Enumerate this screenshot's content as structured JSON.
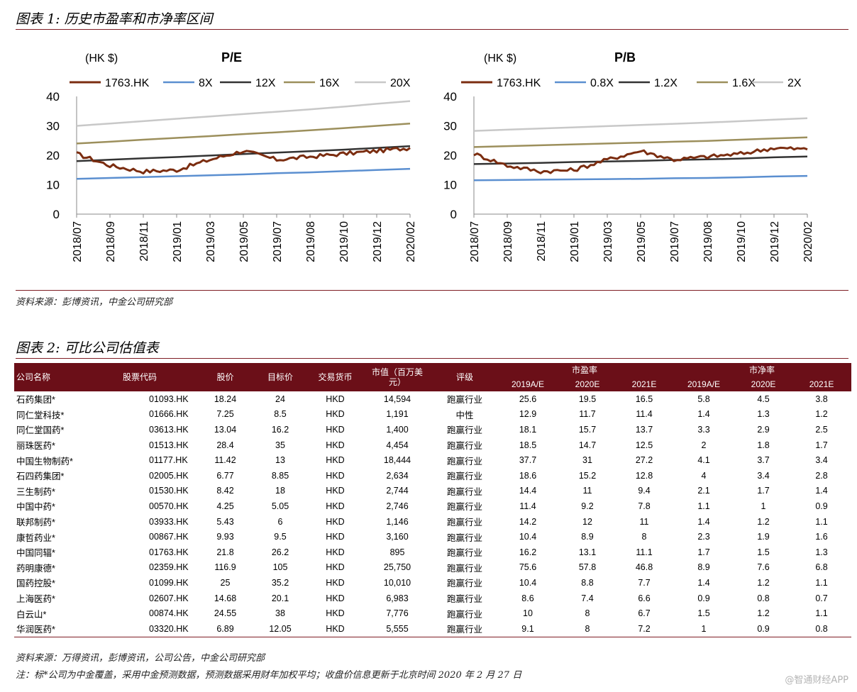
{
  "figure1": {
    "title": "图表 1: 历史市盈率和市净率区间",
    "source": "资料来源：彭博资讯，中金公司研究部"
  },
  "figure2": {
    "title": "图表 2: 可比公司估值表",
    "source": "资料来源：万得资讯，彭博资讯，公司公告，中金公司研究部",
    "note": "注：标*公司为中金覆盖，采用中金预测数据，预测数据采用财年加权平均；收盘价信息更新于北京时间 2020 年 2 月 27 日"
  },
  "watermark": "@智通财经APP",
  "colors": {
    "brand": "#6b0f18",
    "price_line": "#7b2d10",
    "band_low": "#5b8fd0",
    "band_mid": "#333333",
    "band_high": "#9c8f5c",
    "band_top": "#c8c8c8"
  },
  "chart_data": [
    {
      "type": "line",
      "title": "P/E",
      "unit_label": "(HK $)",
      "x": [
        "2018/07",
        "2018/09",
        "2018/11",
        "2019/01",
        "2019/03",
        "2019/05",
        "2019/07",
        "2019/08",
        "2019/10",
        "2019/12",
        "2020/02"
      ],
      "ylim": [
        0,
        40
      ],
      "yticks": [
        "0",
        "10",
        "20",
        "30",
        "40"
      ],
      "series": [
        {
          "name": "1763.HK",
          "values": [
            20.5,
            16.5,
            14.5,
            15.0,
            18.5,
            21.5,
            18.5,
            19.5,
            20.5,
            21.5,
            22.5
          ]
        },
        {
          "name": "8X",
          "values": [
            12.0,
            12.3,
            12.6,
            12.9,
            13.2,
            13.5,
            13.9,
            14.2,
            14.6,
            15.0,
            15.4
          ]
        },
        {
          "name": "12X",
          "values": [
            18.0,
            18.5,
            19.0,
            19.4,
            19.9,
            20.4,
            20.9,
            21.4,
            21.9,
            22.5,
            23.1
          ]
        },
        {
          "name": "16X",
          "values": [
            24.0,
            24.6,
            25.3,
            25.9,
            26.5,
            27.2,
            27.8,
            28.5,
            29.2,
            30.0,
            30.8
          ]
        },
        {
          "name": "20X",
          "values": [
            30.0,
            30.8,
            31.6,
            32.4,
            33.2,
            34.0,
            34.8,
            35.6,
            36.5,
            37.5,
            38.4
          ]
        }
      ]
    },
    {
      "type": "line",
      "title": "P/B",
      "unit_label": "(HK $)",
      "x": [
        "2018/07",
        "2018/09",
        "2018/11",
        "2019/01",
        "2019/03",
        "2019/05",
        "2019/07",
        "2019/08",
        "2019/10",
        "2019/12",
        "2020/02"
      ],
      "ylim": [
        0,
        40
      ],
      "yticks": [
        "0",
        "10",
        "20",
        "30",
        "40"
      ],
      "series": [
        {
          "name": "1763.HK",
          "values": [
            20.5,
            16.5,
            14.5,
            15.0,
            18.5,
            21.5,
            18.5,
            19.5,
            20.5,
            22.5,
            22.0
          ]
        },
        {
          "name": "0.8X",
          "values": [
            11.5,
            11.6,
            11.7,
            11.8,
            11.9,
            12.0,
            12.2,
            12.3,
            12.5,
            12.8,
            13.0
          ]
        },
        {
          "name": "1.2X",
          "values": [
            17.0,
            17.2,
            17.4,
            17.7,
            17.9,
            18.1,
            18.4,
            18.6,
            18.9,
            19.3,
            19.6
          ]
        },
        {
          "name": "1.6X",
          "values": [
            22.8,
            23.1,
            23.4,
            23.7,
            24.0,
            24.3,
            24.6,
            24.9,
            25.3,
            25.7,
            26.1
          ]
        },
        {
          "name": "2X",
          "values": [
            28.3,
            28.7,
            29.1,
            29.5,
            29.9,
            30.3,
            30.7,
            31.1,
            31.6,
            32.1,
            32.6
          ]
        }
      ]
    }
  ],
  "table": {
    "headers": {
      "company": "公司名称",
      "code": "股票代码",
      "price": "股价",
      "target": "目标价",
      "currency": "交易货币",
      "mktcap": "市值（百万美元）",
      "rating": "评级",
      "pe_group": "市盈率",
      "pb_group": "市净率",
      "years": [
        "2019A/E",
        "2020E",
        "2021E",
        "2019A/E",
        "2020E",
        "2021E"
      ]
    },
    "rows": [
      [
        "石药集团*",
        "01093.HK",
        "18.24",
        "24",
        "HKD",
        "14,594",
        "跑赢行业",
        "25.6",
        "19.5",
        "16.5",
        "5.8",
        "4.5",
        "3.8"
      ],
      [
        "同仁堂科技*",
        "01666.HK",
        "7.25",
        "8.5",
        "HKD",
        "1,191",
        "中性",
        "12.9",
        "11.7",
        "11.4",
        "1.4",
        "1.3",
        "1.2"
      ],
      [
        "同仁堂国药*",
        "03613.HK",
        "13.04",
        "16.2",
        "HKD",
        "1,400",
        "跑赢行业",
        "18.1",
        "15.7",
        "13.7",
        "3.3",
        "2.9",
        "2.5"
      ],
      [
        "丽珠医药*",
        "01513.HK",
        "28.4",
        "35",
        "HKD",
        "4,454",
        "跑赢行业",
        "18.5",
        "14.7",
        "12.5",
        "2",
        "1.8",
        "1.7"
      ],
      [
        "中国生物制药*",
        "01177.HK",
        "11.42",
        "13",
        "HKD",
        "18,444",
        "跑赢行业",
        "37.7",
        "31",
        "27.2",
        "4.1",
        "3.7",
        "3.4"
      ],
      [
        "石四药集团*",
        "02005.HK",
        "6.77",
        "8.85",
        "HKD",
        "2,634",
        "跑赢行业",
        "18.6",
        "15.2",
        "12.8",
        "4",
        "3.4",
        "2.8"
      ],
      [
        "三生制药*",
        "01530.HK",
        "8.42",
        "18",
        "HKD",
        "2,744",
        "跑赢行业",
        "14.4",
        "11",
        "9.4",
        "2.1",
        "1.7",
        "1.4"
      ],
      [
        "中国中药*",
        "00570.HK",
        "4.25",
        "5.05",
        "HKD",
        "2,746",
        "跑赢行业",
        "11.4",
        "9.2",
        "7.8",
        "1.1",
        "1",
        "0.9"
      ],
      [
        "联邦制药*",
        "03933.HK",
        "5.43",
        "6",
        "HKD",
        "1,146",
        "跑赢行业",
        "14.2",
        "12",
        "11",
        "1.4",
        "1.2",
        "1.1"
      ],
      [
        "康哲药业*",
        "00867.HK",
        "9.93",
        "9.5",
        "HKD",
        "3,160",
        "跑赢行业",
        "10.4",
        "8.9",
        "8",
        "2.3",
        "1.9",
        "1.6"
      ],
      [
        "中国同辐*",
        "01763.HK",
        "21.8",
        "26.2",
        "HKD",
        "895",
        "跑赢行业",
        "16.2",
        "13.1",
        "11.1",
        "1.7",
        "1.5",
        "1.3"
      ],
      [
        "药明康德*",
        "02359.HK",
        "116.9",
        "105",
        "HKD",
        "25,750",
        "跑赢行业",
        "75.6",
        "57.8",
        "46.8",
        "8.9",
        "7.6",
        "6.8"
      ],
      [
        "国药控股*",
        "01099.HK",
        "25",
        "35.2",
        "HKD",
        "10,010",
        "跑赢行业",
        "10.4",
        "8.8",
        "7.7",
        "1.4",
        "1.2",
        "1.1"
      ],
      [
        "上海医药*",
        "02607.HK",
        "14.68",
        "20.1",
        "HKD",
        "6,983",
        "跑赢行业",
        "8.6",
        "7.4",
        "6.6",
        "0.9",
        "0.8",
        "0.7"
      ],
      [
        "白云山*",
        "00874.HK",
        "24.55",
        "38",
        "HKD",
        "7,776",
        "跑赢行业",
        "10",
        "8",
        "6.7",
        "1.5",
        "1.2",
        "1.1"
      ],
      [
        "华润医药*",
        "03320.HK",
        "6.89",
        "12.05",
        "HKD",
        "5,555",
        "跑赢行业",
        "9.1",
        "8",
        "7.2",
        "1",
        "0.9",
        "0.8"
      ]
    ]
  }
}
